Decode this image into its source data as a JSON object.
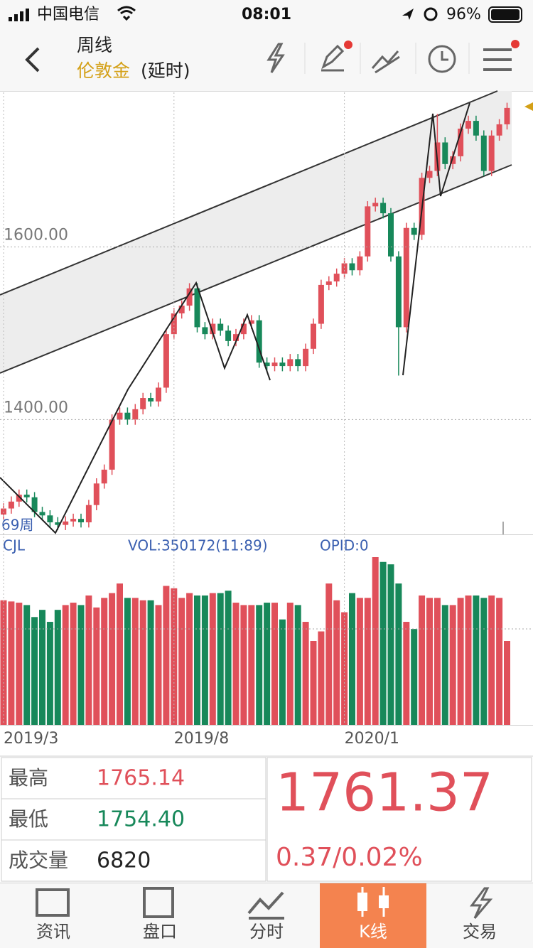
{
  "status_bar": {
    "carrier": "中国电信",
    "time": "08:01",
    "battery": "96%"
  },
  "header": {
    "period": "周线",
    "instrument": "伦敦金",
    "delay": "(延时)"
  },
  "chart_data": {
    "type": "candlestick",
    "dates": [
      "2019/3",
      null,
      null,
      null,
      null,
      null,
      null,
      null,
      null,
      null,
      null,
      null,
      null,
      null,
      null,
      null,
      null,
      null,
      null,
      null,
      null,
      null,
      "2019/8",
      null,
      null,
      null,
      null,
      null,
      null,
      null,
      null,
      null,
      null,
      null,
      null,
      null,
      null,
      null,
      null,
      null,
      null,
      null,
      null,
      null,
      "2020/1",
      null,
      null,
      null,
      null,
      null,
      null,
      null,
      null,
      null,
      null,
      null,
      null,
      null,
      null,
      null,
      null,
      null,
      null,
      null,
      null,
      null
    ],
    "open": [
      1290,
      1297,
      1305,
      1313,
      1310,
      1293,
      1289,
      1281,
      1278,
      1282,
      1285,
      1281,
      1301,
      1326,
      1342,
      1400,
      1408,
      1400,
      1412,
      1425,
      1421,
      1437,
      1499,
      1523,
      1532,
      1552,
      1507,
      1499,
      1511,
      1503,
      1491,
      1499,
      1511,
      1515,
      1466,
      1462,
      1466,
      1462,
      1470,
      1462,
      1482,
      1511,
      1556,
      1560,
      1569,
      1581,
      1573,
      1589,
      1647,
      1651,
      1639,
      1589,
      1507,
      1622,
      1614,
      1680,
      1688,
      1721,
      1696,
      1705,
      1737,
      1746,
      1729,
      1688,
      1729,
      1742
    ],
    "high": [
      1303,
      1311,
      1319,
      1319,
      1316,
      1299,
      1295,
      1287,
      1288,
      1291,
      1291,
      1307,
      1332,
      1348,
      1406,
      1414,
      1414,
      1418,
      1431,
      1431,
      1443,
      1505,
      1529,
      1538,
      1558,
      1558,
      1513,
      1517,
      1517,
      1509,
      1505,
      1517,
      1521,
      1521,
      1472,
      1472,
      1472,
      1476,
      1476,
      1488,
      1517,
      1562,
      1566,
      1575,
      1587,
      1587,
      1595,
      1653,
      1657,
      1657,
      1645,
      1595,
      1628,
      1628,
      1686,
      1694,
      1754,
      1727,
      1711,
      1743,
      1752,
      1752,
      1735,
      1735,
      1748,
      1767
    ],
    "low": [
      1284,
      1291,
      1299,
      1304,
      1287,
      1283,
      1275,
      1272,
      1272,
      1276,
      1275,
      1275,
      1295,
      1320,
      1336,
      1394,
      1394,
      1394,
      1406,
      1415,
      1415,
      1431,
      1493,
      1517,
      1526,
      1501,
      1493,
      1493,
      1497,
      1485,
      1485,
      1493,
      1505,
      1460,
      1456,
      1456,
      1456,
      1456,
      1456,
      1456,
      1476,
      1505,
      1550,
      1554,
      1563,
      1567,
      1567,
      1583,
      1641,
      1633,
      1583,
      1451,
      1501,
      1608,
      1608,
      1674,
      1682,
      1690,
      1690,
      1699,
      1731,
      1723,
      1682,
      1682,
      1723,
      1736
    ],
    "close": [
      1297,
      1305,
      1313,
      1310,
      1293,
      1289,
      1281,
      1278,
      1282,
      1285,
      1281,
      1301,
      1326,
      1342,
      1400,
      1408,
      1400,
      1412,
      1425,
      1421,
      1437,
      1499,
      1523,
      1532,
      1552,
      1507,
      1499,
      1511,
      1503,
      1491,
      1499,
      1511,
      1515,
      1466,
      1462,
      1466,
      1462,
      1470,
      1462,
      1482,
      1511,
      1556,
      1560,
      1569,
      1581,
      1573,
      1589,
      1647,
      1651,
      1639,
      1589,
      1507,
      1622,
      1614,
      1680,
      1688,
      1721,
      1696,
      1705,
      1737,
      1746,
      1729,
      1688,
      1729,
      1742,
      1761
    ],
    "up_color": "#e0505a",
    "down_color": "#17885a",
    "ylim": [
      1267,
      1779
    ],
    "yticks": [
      {
        "value": 1600,
        "label": "1600.00"
      },
      {
        "value": 1400,
        "label": "1400.00"
      }
    ],
    "grid": true,
    "period_label": "69周"
  },
  "volume_chart": {
    "type": "bar",
    "title": "CJL",
    "vol_label": "VOL:350172(11:89)",
    "opid_label": "OPID:0",
    "values": [
      5200,
      5150,
      5100,
      5000,
      4500,
      4800,
      4300,
      4800,
      5000,
      5100,
      5000,
      5400,
      4900,
      5300,
      5500,
      5900,
      5300,
      5300,
      5200,
      5200,
      5000,
      5800,
      5700,
      5300,
      5500,
      5400,
      5400,
      5500,
      5500,
      5600,
      5100,
      5000,
      5000,
      5000,
      5100,
      5100,
      4400,
      5100,
      5000,
      4300,
      3500,
      3900,
      5900,
      5200,
      4700,
      5500,
      5300,
      5300,
      7000,
      6800,
      6700,
      5900,
      4300,
      4000,
      5400,
      5300,
      5300,
      5000,
      5000,
      5300,
      5400,
      5400,
      5300,
      5400,
      5300,
      3500
    ],
    "ylim": [
      0,
      7000
    ]
  },
  "quote": {
    "high_label": "最高",
    "high": "1765.14",
    "low_label": "最低",
    "low": "1754.40",
    "volume_label": "成交量",
    "volume": "6820",
    "last": "1761.37",
    "change": "0.37/0.02%"
  },
  "tabs": [
    "资讯",
    "盘口",
    "分时",
    "K线",
    "交易"
  ]
}
